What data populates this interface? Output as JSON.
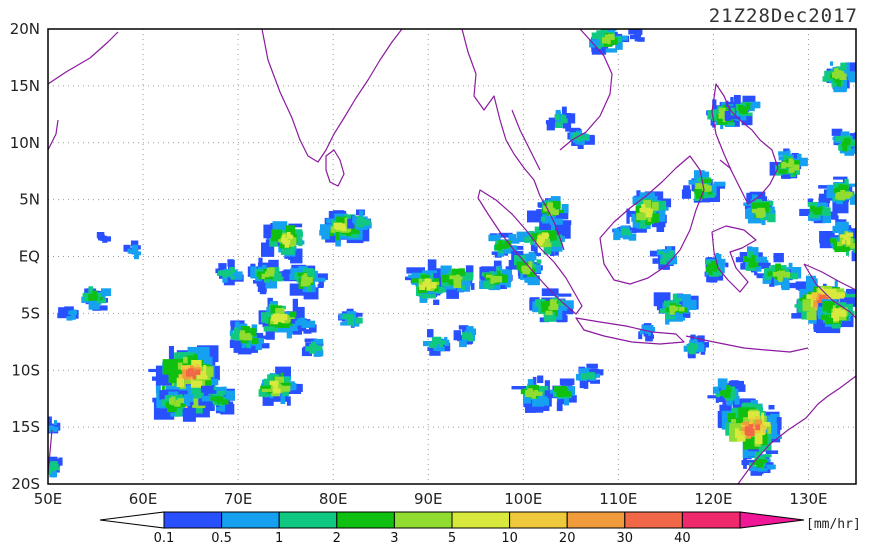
{
  "title": "21Z28Dec2017",
  "unit": "[mm/hr]",
  "map": {
    "lon_range": [
      50,
      135
    ],
    "lat_range": [
      -20,
      20
    ],
    "lon_ticks": [
      "50E",
      "60E",
      "70E",
      "80E",
      "90E",
      "100E",
      "110E",
      "120E",
      "130E"
    ],
    "lat_ticks": [
      "20N",
      "15N",
      "10N",
      "5N",
      "EQ",
      "5S",
      "10S",
      "15S",
      "20S"
    ],
    "coastline_color": "#8b1a9e",
    "grid": "dotted"
  },
  "colorbar": {
    "labels": [
      "0.1",
      "0.5",
      "1",
      "2",
      "3",
      "5",
      "10",
      "20",
      "30",
      "40"
    ],
    "colors": [
      "#2850ff",
      "#16a0f0",
      "#10c880",
      "#10c010",
      "#90dc30",
      "#d8e83c",
      "#f0c83c",
      "#f09c3c",
      "#f06848",
      "#f0286c"
    ],
    "under_color": "#ffffff",
    "over_color": "#f01896"
  },
  "precip_cells": [
    {
      "lon": 55,
      "lat": -3.5,
      "level": 3
    },
    {
      "lon": 52.5,
      "lat": -5,
      "level": 1
    },
    {
      "lon": 64.5,
      "lat": -12,
      "level": 8
    },
    {
      "lon": 65,
      "lat": -10.2,
      "level": 8
    },
    {
      "lon": 63.5,
      "lat": -13,
      "level": 4
    },
    {
      "lon": 68,
      "lat": -12.5,
      "level": 3
    },
    {
      "lon": 74,
      "lat": -11.5,
      "level": 5
    },
    {
      "lon": 71,
      "lat": -7,
      "level": 4
    },
    {
      "lon": 74.5,
      "lat": -5.5,
      "level": 5
    },
    {
      "lon": 78,
      "lat": -8,
      "level": 2
    },
    {
      "lon": 77,
      "lat": -6,
      "level": 1
    },
    {
      "lon": 73,
      "lat": -1.5,
      "level": 4
    },
    {
      "lon": 77,
      "lat": -2,
      "level": 4
    },
    {
      "lon": 69,
      "lat": -1.5,
      "level": 2
    },
    {
      "lon": 75,
      "lat": 1.5,
      "level": 5
    },
    {
      "lon": 81,
      "lat": 2.5,
      "level": 5
    },
    {
      "lon": 83,
      "lat": 3,
      "level": 2
    },
    {
      "lon": 82,
      "lat": -5.5,
      "level": 2
    },
    {
      "lon": 90,
      "lat": -2.5,
      "level": 5
    },
    {
      "lon": 93,
      "lat": -2,
      "level": 4
    },
    {
      "lon": 97,
      "lat": -2,
      "level": 4
    },
    {
      "lon": 91,
      "lat": -7.5,
      "level": 2
    },
    {
      "lon": 94,
      "lat": -7,
      "level": 2
    },
    {
      "lon": 101,
      "lat": -12,
      "level": 4
    },
    {
      "lon": 104,
      "lat": -12,
      "level": 3
    },
    {
      "lon": 107,
      "lat": -10.5,
      "level": 2
    },
    {
      "lon": 98,
      "lat": 1,
      "level": 3
    },
    {
      "lon": 102,
      "lat": 1.5,
      "level": 5
    },
    {
      "lon": 103,
      "lat": 4,
      "level": 4
    },
    {
      "lon": 100.5,
      "lat": -1,
      "level": 4
    },
    {
      "lon": 103,
      "lat": -4.5,
      "level": 4
    },
    {
      "lon": 104,
      "lat": 12,
      "level": 2
    },
    {
      "lon": 106,
      "lat": 10.5,
      "level": 2
    },
    {
      "lon": 113,
      "lat": 4,
      "level": 5
    },
    {
      "lon": 119,
      "lat": 6,
      "level": 4
    },
    {
      "lon": 121,
      "lat": 12.5,
      "level": 4
    },
    {
      "lon": 123,
      "lat": 13,
      "level": 3
    },
    {
      "lon": 125,
      "lat": 4,
      "level": 4
    },
    {
      "lon": 128,
      "lat": 8,
      "level": 4
    },
    {
      "lon": 131,
      "lat": 4,
      "level": 3
    },
    {
      "lon": 133.5,
      "lat": 5.5,
      "level": 4
    },
    {
      "lon": 134,
      "lat": 1.5,
      "level": 5
    },
    {
      "lon": 133,
      "lat": 16,
      "level": 4
    },
    {
      "lon": 134,
      "lat": 10,
      "level": 3
    },
    {
      "lon": 124,
      "lat": -0.5,
      "level": 3
    },
    {
      "lon": 127,
      "lat": -1.5,
      "level": 4
    },
    {
      "lon": 131.5,
      "lat": -4,
      "level": 8
    },
    {
      "lon": 133,
      "lat": -5,
      "level": 5
    },
    {
      "lon": 124,
      "lat": -15,
      "level": 8
    },
    {
      "lon": 125,
      "lat": -18,
      "level": 3
    },
    {
      "lon": 121.5,
      "lat": -12,
      "level": 3
    },
    {
      "lon": 113,
      "lat": -6.5,
      "level": 1
    },
    {
      "lon": 116,
      "lat": -4.5,
      "level": 4
    },
    {
      "lon": 120,
      "lat": -1,
      "level": 3
    },
    {
      "lon": 118,
      "lat": -8,
      "level": 2
    },
    {
      "lon": 110.5,
      "lat": 2,
      "level": 2
    },
    {
      "lon": 115,
      "lat": 0,
      "level": 2
    },
    {
      "lon": 112,
      "lat": 19.5,
      "level": 0
    },
    {
      "lon": 109,
      "lat": 19,
      "level": 4
    },
    {
      "lon": 50.5,
      "lat": -15,
      "level": 1
    },
    {
      "lon": 50.3,
      "lat": -18.5,
      "level": 2
    },
    {
      "lon": 56,
      "lat": 1.5,
      "level": 0
    },
    {
      "lon": 59,
      "lat": 0.5,
      "level": 1
    }
  ]
}
